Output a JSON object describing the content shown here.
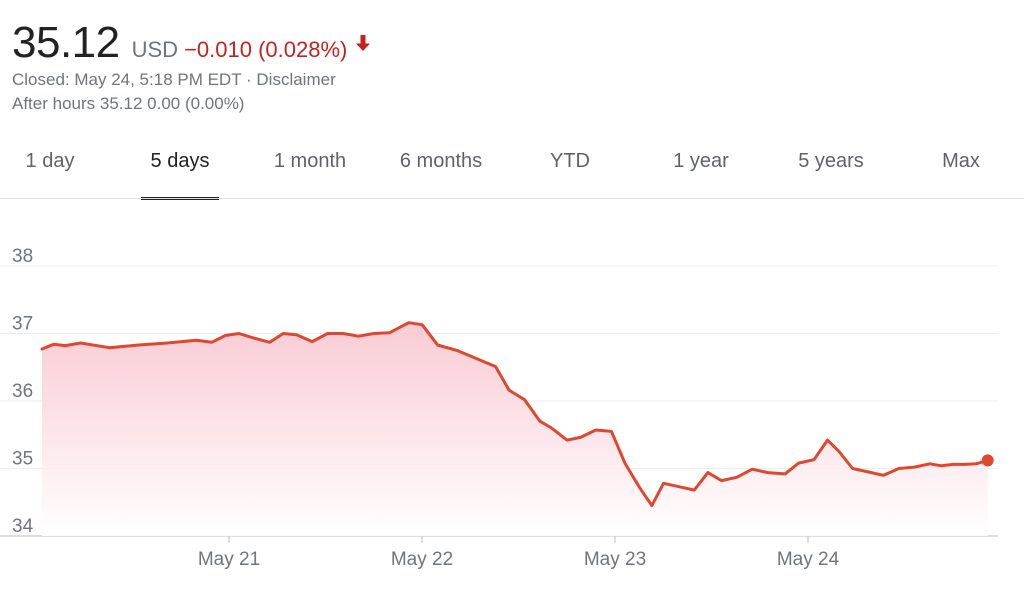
{
  "quote": {
    "price": "35.12",
    "currency": "USD",
    "change": "−0.010 (0.028%)",
    "direction_icon": "arrow-down-icon",
    "closed_text": "Closed: May 24, 5:18 PM EDT · Disclaimer",
    "after_hours_text": "After hours 35.12 0.00 (0.00%)"
  },
  "tabs": [
    {
      "label": "1 day",
      "active": false
    },
    {
      "label": "5 days",
      "active": true
    },
    {
      "label": "1 month",
      "active": false
    },
    {
      "label": "6 months",
      "active": false
    },
    {
      "label": "YTD",
      "active": false
    },
    {
      "label": "1 year",
      "active": false
    },
    {
      "label": "5 years",
      "active": false
    },
    {
      "label": "Max",
      "active": false
    }
  ],
  "colors": {
    "line": "#e0472f",
    "negative": "#c5221f",
    "fill_top": "#f8c3cd",
    "grid": "#eeeeee",
    "axis_text": "#70757a"
  },
  "chart_data": {
    "type": "area",
    "x_ticks": [
      "May 21",
      "May 22",
      "May 23",
      "May 24"
    ],
    "y_ticks": [
      "38",
      "37",
      "36",
      "35",
      "34"
    ],
    "ylim": [
      34,
      38.4
    ],
    "xlim": [
      0,
      4.93
    ],
    "grid": true,
    "series": [
      {
        "x": [
          0,
          0.06,
          0.12,
          0.2,
          0.35,
          0.5,
          0.65,
          0.8,
          0.88,
          0.95,
          1.02,
          1.1,
          1.18,
          1.25,
          1.32,
          1.4,
          1.48,
          1.56,
          1.64,
          1.72,
          1.8,
          1.9,
          1.97,
          2.05,
          2.15,
          2.25,
          2.35,
          2.42,
          2.5,
          2.58,
          2.64,
          2.72,
          2.79,
          2.87,
          2.95,
          3.02,
          3.1,
          3.16,
          3.22,
          3.3,
          3.38,
          3.45,
          3.52,
          3.6,
          3.68,
          3.76,
          3.85,
          3.92,
          4.0,
          4.07,
          4.13,
          4.2,
          4.28,
          4.36,
          4.44,
          4.52,
          4.6,
          4.66,
          4.72,
          4.78,
          4.84,
          4.9
        ],
        "y": [
          36.77,
          36.84,
          36.82,
          36.86,
          36.79,
          36.83,
          36.86,
          36.9,
          36.87,
          36.97,
          37.0,
          36.93,
          36.87,
          37.0,
          36.98,
          36.88,
          37.0,
          37.0,
          36.96,
          37.0,
          37.01,
          37.16,
          37.13,
          36.83,
          36.75,
          36.63,
          36.51,
          36.16,
          36.02,
          35.7,
          35.6,
          35.42,
          35.46,
          35.57,
          35.55,
          35.08,
          34.7,
          34.45,
          34.78,
          34.73,
          34.68,
          34.94,
          34.82,
          34.87,
          34.99,
          34.94,
          34.92,
          35.08,
          35.13,
          35.42,
          35.25,
          35.0,
          34.95,
          34.9,
          35.0,
          35.02,
          35.07,
          35.04,
          35.06,
          35.06,
          35.07,
          35.12
        ]
      }
    ]
  }
}
